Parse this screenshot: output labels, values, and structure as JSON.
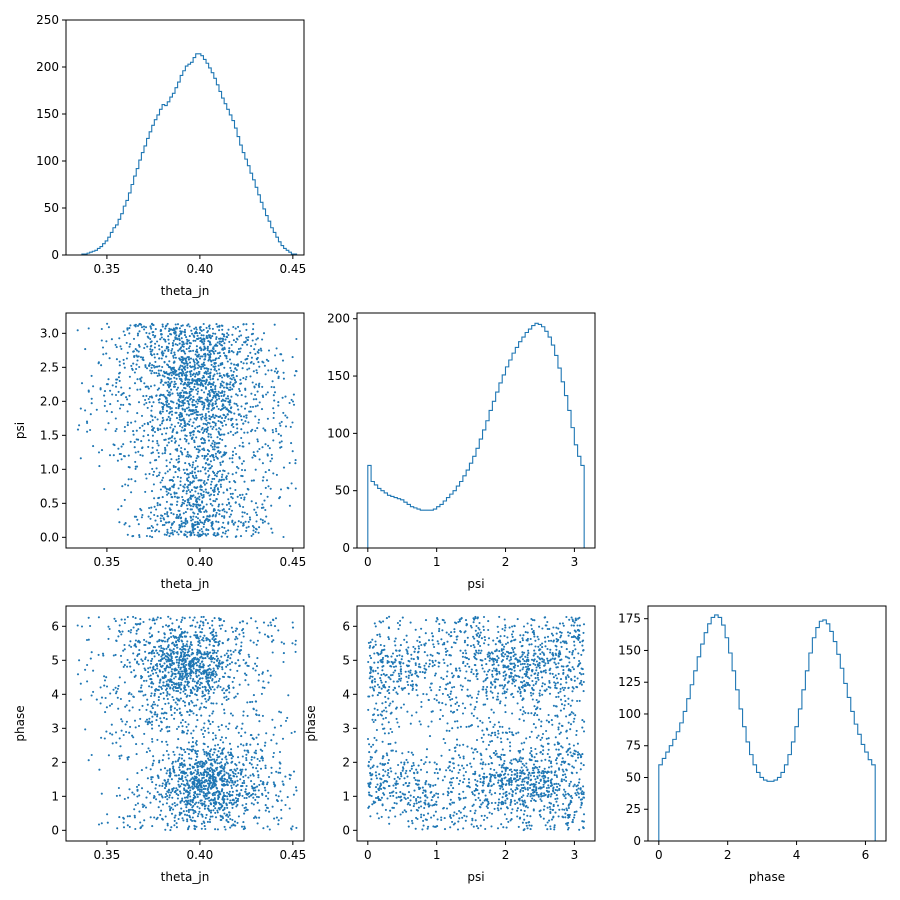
{
  "chart_data": {
    "type": "corner",
    "series_color": "#1f77b4",
    "parameters": [
      "theta_jn",
      "psi",
      "phase"
    ],
    "panels": [
      {
        "id": "hist-theta_jn",
        "type": "histogram",
        "xlabel": "theta_jn",
        "ylabel": "",
        "xlim": [
          0.328,
          0.456
        ],
        "ylim": [
          0,
          250
        ],
        "xticks": [
          0.35,
          0.4,
          0.45
        ],
        "xtick_labels": [
          "0.35",
          "0.40",
          "0.45"
        ],
        "yticks": [
          0,
          50,
          100,
          150,
          200,
          250
        ],
        "ytick_labels": [
          "0",
          "50",
          "100",
          "150",
          "200",
          "250"
        ],
        "bin_edges_range": [
          0.331,
          0.452
        ],
        "counts": [
          0,
          0,
          0,
          0,
          1,
          1,
          2,
          3,
          4,
          5,
          7,
          9,
          12,
          15,
          19,
          24,
          29,
          32,
          38,
          44,
          52,
          58,
          66,
          75,
          84,
          92,
          101,
          109,
          116,
          124,
          131,
          138,
          144,
          149,
          155,
          160,
          159,
          163,
          168,
          172,
          178,
          184,
          191,
          196,
          201,
          203,
          205,
          210,
          214,
          214,
          212,
          208,
          204,
          199,
          194,
          188,
          181,
          174,
          167,
          161,
          155,
          149,
          143,
          135,
          126,
          117,
          109,
          102,
          95,
          87,
          80,
          72,
          64,
          56,
          49,
          42,
          36,
          29,
          24,
          19,
          14,
          10,
          7,
          5,
          3,
          1,
          1
        ]
      },
      {
        "id": "scatter-psi-theta_jn",
        "type": "scatter",
        "xlabel": "theta_jn",
        "ylabel": "psi",
        "xlim": [
          0.328,
          0.456
        ],
        "ylim": [
          -0.157,
          3.299
        ],
        "xticks": [
          0.35,
          0.4,
          0.45
        ],
        "xtick_labels": [
          "0.35",
          "0.40",
          "0.45"
        ],
        "yticks": [
          0.0,
          0.5,
          1.0,
          1.5,
          2.0,
          2.5,
          3.0
        ],
        "ytick_labels": [
          "0.0",
          "0.5",
          "1.0",
          "1.5",
          "2.0",
          "2.5",
          "3.0"
        ]
      },
      {
        "id": "hist-psi",
        "type": "histogram",
        "xlabel": "psi",
        "ylabel": "",
        "xlim": [
          -0.157,
          3.299
        ],
        "ylim": [
          0,
          205
        ],
        "xticks": [
          0,
          1,
          2,
          3
        ],
        "xtick_labels": [
          "0",
          "1",
          "2",
          "3"
        ],
        "yticks": [
          0,
          50,
          100,
          150,
          200
        ],
        "ytick_labels": [
          "0",
          "50",
          "100",
          "150",
          "200"
        ],
        "bin_edges_range": [
          0,
          3.1416
        ],
        "counts": [
          72,
          58,
          55,
          52,
          50,
          48,
          46,
          45,
          44,
          43,
          42,
          40,
          38,
          36,
          35,
          34,
          33,
          33,
          33,
          33,
          34,
          36,
          38,
          41,
          44,
          47,
          50,
          54,
          58,
          63,
          68,
          74,
          80,
          87,
          95,
          103,
          111,
          120,
          128,
          136,
          144,
          151,
          158,
          164,
          170,
          175,
          180,
          184,
          188,
          191,
          194,
          196,
          195,
          193,
          189,
          184,
          177,
          168,
          157,
          145,
          133,
          120,
          105,
          90,
          80,
          72
        ]
      },
      {
        "id": "scatter-phase-theta_jn",
        "type": "scatter",
        "xlabel": "theta_jn",
        "ylabel": "phase",
        "xlim": [
          0.328,
          0.456
        ],
        "ylim": [
          -0.314,
          6.597
        ],
        "xticks": [
          0.35,
          0.4,
          0.45
        ],
        "xtick_labels": [
          "0.35",
          "0.40",
          "0.45"
        ],
        "yticks": [
          0,
          1,
          2,
          3,
          4,
          5,
          6
        ],
        "ytick_labels": [
          "0",
          "1",
          "2",
          "3",
          "4",
          "5",
          "6"
        ]
      },
      {
        "id": "scatter-phase-psi",
        "type": "scatter",
        "xlabel": "psi",
        "ylabel": "phase",
        "xlim": [
          -0.157,
          3.299
        ],
        "ylim": [
          -0.314,
          6.597
        ],
        "xticks": [
          0,
          1,
          2,
          3
        ],
        "xtick_labels": [
          "0",
          "1",
          "2",
          "3"
        ],
        "yticks": [
          0,
          1,
          2,
          3,
          4,
          5,
          6
        ],
        "ytick_labels": [
          "0",
          "1",
          "2",
          "3",
          "4",
          "5",
          "6"
        ]
      },
      {
        "id": "hist-phase",
        "type": "histogram",
        "xlabel": "phase",
        "ylabel": "",
        "xlim": [
          -0.314,
          6.597
        ],
        "ylim": [
          0,
          185
        ],
        "xticks": [
          0,
          2,
          4,
          6
        ],
        "xtick_labels": [
          "0",
          "2",
          "4",
          "6"
        ],
        "yticks": [
          0,
          25,
          50,
          75,
          100,
          125,
          150,
          175
        ],
        "ytick_labels": [
          "0",
          "25",
          "50",
          "75",
          "100",
          "125",
          "150",
          "175"
        ],
        "bin_edges_range": [
          0,
          6.2832
        ],
        "counts": [
          60,
          65,
          70,
          75,
          80,
          86,
          93,
          102,
          112,
          123,
          134,
          145,
          155,
          164,
          171,
          176,
          178,
          176,
          170,
          160,
          148,
          134,
          119,
          104,
          90,
          78,
          68,
          60,
          54,
          50,
          48,
          47,
          47,
          48,
          50,
          54,
          60,
          68,
          78,
          90,
          104,
          119,
          134,
          148,
          160,
          168,
          173,
          174,
          171,
          165,
          157,
          147,
          136,
          124,
          113,
          102,
          92,
          84,
          76,
          70,
          64,
          60
        ]
      }
    ],
    "scatter_sample": {
      "columns": [
        "theta_jn",
        "psi",
        "phase"
      ],
      "points": [
        [
          0.398,
          2.31,
          4.72
        ],
        [
          0.401,
          2.05,
          1.38
        ],
        [
          0.392,
          1.88,
          5.12
        ],
        [
          0.405,
          2.62,
          1.54
        ],
        [
          0.387,
          2.44,
          4.31
        ],
        [
          0.41,
          1.71,
          1.02
        ],
        [
          0.395,
          2.18,
          4.95
        ],
        [
          0.399,
          1.56,
          1.67
        ],
        [
          0.383,
          2.74,
          5.41
        ],
        [
          0.412,
          2.29,
          1.21
        ],
        [
          0.404,
          2.01,
          4.58
        ],
        [
          0.391,
          1.94,
          1.45
        ],
        [
          0.397,
          2.47,
          4.88
        ],
        [
          0.415,
          2.36,
          1.33
        ],
        [
          0.379,
          1.82,
          5.01
        ],
        [
          0.408,
          2.55,
          1.74
        ],
        [
          0.393,
          2.12,
          4.44
        ],
        [
          0.402,
          1.67,
          1.12
        ],
        [
          0.386,
          2.89,
          5.33
        ],
        [
          0.406,
          2.21,
          1.59
        ],
        [
          0.396,
          1.99,
          4.67
        ],
        [
          0.389,
          2.41,
          1.28
        ],
        [
          0.403,
          2.68,
          5.18
        ],
        [
          0.411,
          1.78,
          1.49
        ],
        [
          0.384,
          2.26,
          4.79
        ],
        [
          0.4,
          2.51,
          1.06
        ],
        [
          0.394,
          1.91,
          5.27
        ],
        [
          0.407,
          2.33,
          1.63
        ],
        [
          0.39,
          2.08,
          4.52
        ],
        [
          0.413,
          2.71,
          1.36
        ],
        [
          0.381,
          2.58,
          4.91
        ],
        [
          0.398,
          1.73,
          1.57
        ],
        [
          0.405,
          2.15,
          5.06
        ],
        [
          0.388,
          2.39,
          1.19
        ],
        [
          0.402,
          2.84,
          4.63
        ],
        [
          0.416,
          1.95,
          1.41
        ],
        [
          0.392,
          2.27,
          5.22
        ],
        [
          0.399,
          2.49,
          1.71
        ],
        [
          0.385,
          1.85,
          4.36
        ],
        [
          0.409,
          2.63,
          1.25
        ],
        [
          0.397,
          0.35,
          1.11
        ],
        [
          0.401,
          0.62,
          0.88
        ],
        [
          0.389,
          0.18,
          1.52
        ],
        [
          0.405,
          0.91,
          1.33
        ],
        [
          0.393,
          0.47,
          0.97
        ],
        [
          0.41,
          0.12,
          1.61
        ],
        [
          0.386,
          0.76,
          1.24
        ],
        [
          0.399,
          0.28,
          1.43
        ],
        [
          0.403,
          1.02,
          1.07
        ],
        [
          0.391,
          0.55,
          1.68
        ],
        [
          0.395,
          0.41,
          4.82
        ],
        [
          0.407,
          0.69,
          4.61
        ],
        [
          0.383,
          0.22,
          5.07
        ],
        [
          0.4,
          0.84,
          4.73
        ],
        [
          0.412,
          0.15,
          4.94
        ],
        [
          0.388,
          0.58,
          5.19
        ],
        [
          0.404,
          0.31,
          4.49
        ],
        [
          0.396,
          0.97,
          4.86
        ],
        [
          0.39,
          0.08,
          4.67
        ],
        [
          0.408,
          0.73,
          5.04
        ],
        [
          0.372,
          2.95,
          3.12
        ],
        [
          0.421,
          2.77,
          0.41
        ],
        [
          0.366,
          1.44,
          6.05
        ],
        [
          0.429,
          2.03,
          2.68
        ],
        [
          0.359,
          2.61,
          0.23
        ],
        [
          0.435,
          1.58,
          5.76
        ],
        [
          0.376,
          0.09,
          3.41
        ],
        [
          0.425,
          3.05,
          2.22
        ],
        [
          0.368,
          1.21,
          4.08
        ],
        [
          0.431,
          0.44,
          1.92
        ],
        [
          0.355,
          2.32,
          5.58
        ],
        [
          0.441,
          2.48,
          1.03
        ],
        [
          0.362,
          1.96,
          2.87
        ],
        [
          0.438,
          1.12,
          6.11
        ],
        [
          0.371,
          3.09,
          0.67
        ],
        [
          0.427,
          0.26,
          3.77
        ],
        [
          0.349,
          2.15,
          4.41
        ],
        [
          0.446,
          1.79,
          1.58
        ],
        [
          0.377,
          2.88,
          3.35
        ],
        [
          0.419,
          0.81,
          0.14
        ],
        [
          0.394,
          1.38,
          4.23
        ],
        [
          0.402,
          2.97,
          1.88
        ],
        [
          0.387,
          1.29,
          5.69
        ],
        [
          0.411,
          2.92,
          0.76
        ],
        [
          0.398,
          1.47,
          3.05
        ],
        [
          0.392,
          3.02,
          5.84
        ],
        [
          0.406,
          1.35,
          0.52
        ],
        [
          0.384,
          2.99,
          4.17
        ],
        [
          0.413,
          1.51,
          2.41
        ],
        [
          0.4,
          3.08,
          6.02
        ]
      ]
    }
  }
}
